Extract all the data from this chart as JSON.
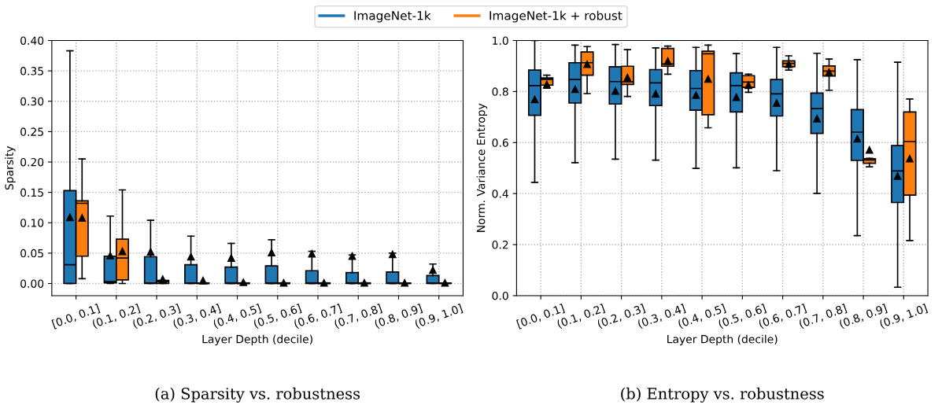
{
  "chart_data": [
    {
      "type": "box",
      "ylabel": "Sparsity",
      "xlabel": "Layer Depth (decile)",
      "categories": [
        "[0.0, 0.1]",
        "(0.1, 0.2]",
        "(0.2, 0.3]",
        "(0.3, 0.4]",
        "(0.4, 0.5]",
        "(0.5, 0.6]",
        "(0.6, 0.7]",
        "(0.7, 0.8]",
        "(0.8, 0.9]",
        "(0.9, 1.0]"
      ],
      "ylim": [
        -0.02,
        0.4
      ],
      "yticks": [
        {
          "value": 0,
          "label": "0.00"
        },
        {
          "value": 0.05,
          "label": "0.05"
        },
        {
          "value": 0.1,
          "label": "0.10"
        },
        {
          "value": 0.15,
          "label": "0.15"
        },
        {
          "value": 0.2,
          "label": "0.20"
        },
        {
          "value": 0.25,
          "label": "0.25"
        },
        {
          "value": 0.3,
          "label": "0.30"
        },
        {
          "value": 0.35,
          "label": "0.35"
        },
        {
          "value": 0.4,
          "label": "0.40"
        }
      ],
      "grid": true,
      "legend": "top",
      "marker": "triangle",
      "annotations": [
        "(a) Sparsity vs. robustness"
      ],
      "series": [
        {
          "name": "ImageNet-1k",
          "color": "#1f77b4",
          "boxes": [
            {
              "low": 0,
              "q1": 0,
              "median": 0.031,
              "q3": 0.153,
              "high": 0.383,
              "mean": 0.109
            },
            {
              "low": 0,
              "q1": 0.001,
              "median": 0.003,
              "q3": 0.045,
              "high": 0.111,
              "mean": 0.046
            },
            {
              "low": 0,
              "q1": 0,
              "median": 0.001,
              "q3": 0.044,
              "high": 0.104,
              "mean": 0.052
            },
            {
              "low": 0,
              "q1": 0,
              "median": 0.001,
              "q3": 0.031,
              "high": 0.078,
              "mean": 0.044
            },
            {
              "low": 0,
              "q1": 0,
              "median": 0.001,
              "q3": 0.027,
              "high": 0.066,
              "mean": 0.042
            },
            {
              "low": 0,
              "q1": 0,
              "median": 0.001,
              "q3": 0.029,
              "high": 0.072,
              "mean": 0.051
            },
            {
              "low": 0,
              "q1": 0,
              "median": 0.001,
              "q3": 0.021,
              "high": 0.053,
              "mean": 0.049
            },
            {
              "low": 0,
              "q1": 0,
              "median": 0.001,
              "q3": 0.018,
              "high": 0.047,
              "mean": 0.045
            },
            {
              "low": 0,
              "q1": 0,
              "median": 0.001,
              "q3": 0.019,
              "high": 0.05,
              "mean": 0.048
            },
            {
              "low": 0,
              "q1": 0,
              "median": 0.001,
              "q3": 0.013,
              "high": 0.032,
              "mean": 0.022
            }
          ]
        },
        {
          "name": "ImageNet-1k + robust",
          "color": "#ff7f0e",
          "boxes": [
            {
              "low": 0.008,
              "q1": 0.045,
              "median": 0.132,
              "q3": 0.136,
              "high": 0.205,
              "mean": 0.108
            },
            {
              "low": 0,
              "q1": 0.006,
              "median": 0.042,
              "q3": 0.073,
              "high": 0.154,
              "mean": 0.053
            },
            {
              "low": 0,
              "q1": 0,
              "median": 0.003,
              "q3": 0.005,
              "high": 0.005,
              "mean": 0.007
            },
            {
              "low": 0,
              "q1": 0,
              "median": 0,
              "q3": 0.001,
              "high": 0.001,
              "mean": 0.005
            },
            {
              "low": 0,
              "q1": 0,
              "median": 0,
              "q3": 0.001,
              "high": 0.001,
              "mean": 0.002
            },
            {
              "low": 0,
              "q1": 0,
              "median": 0,
              "q3": 0.001,
              "high": 0.001,
              "mean": 0.001
            },
            {
              "low": 0,
              "q1": 0,
              "median": 0,
              "q3": 0.001,
              "high": 0.001,
              "mean": 0.001
            },
            {
              "low": 0,
              "q1": 0,
              "median": 0,
              "q3": 0.001,
              "high": 0.001,
              "mean": 0.001
            },
            {
              "low": 0,
              "q1": 0,
              "median": 0,
              "q3": 0.001,
              "high": 0.001,
              "mean": 0.001
            },
            {
              "low": 0,
              "q1": 0,
              "median": 0,
              "q3": 0.001,
              "high": 0.001,
              "mean": 0.001
            }
          ]
        }
      ]
    },
    {
      "type": "box",
      "ylabel": "Norm. Variance Entropy",
      "xlabel": "Layer Depth (decile)",
      "categories": [
        "[0.0, 0.1]",
        "(0.1, 0.2]",
        "(0.2, 0.3]",
        "(0.3, 0.4]",
        "(0.4, 0.5]",
        "(0.5, 0.6]",
        "(0.6, 0.7]",
        "(0.7, 0.8]",
        "(0.8, 0.9]",
        "(0.9, 1.0]"
      ],
      "ylim": [
        0,
        1
      ],
      "yticks": [
        {
          "value": 0,
          "label": "0.0"
        },
        {
          "value": 0.2,
          "label": "0.2"
        },
        {
          "value": 0.4,
          "label": "0.4"
        },
        {
          "value": 0.6,
          "label": "0.6"
        },
        {
          "value": 0.8,
          "label": "0.8"
        },
        {
          "value": 1,
          "label": "1.0"
        }
      ],
      "grid": true,
      "marker": "triangle",
      "annotations": [
        "(b) Entropy vs. robustness"
      ],
      "series": [
        {
          "color": "#1f77b4",
          "boxes": [
            {
              "low": 0.444,
              "q1": 0.707,
              "median": 0.823,
              "q3": 0.884,
              "high": 1.0,
              "mean": 0.769
            },
            {
              "low": 0.521,
              "q1": 0.755,
              "median": 0.847,
              "q3": 0.913,
              "high": 0.982,
              "mean": 0.809
            },
            {
              "low": 0.535,
              "q1": 0.751,
              "median": 0.839,
              "q3": 0.897,
              "high": 0.984,
              "mean": 0.802
            },
            {
              "low": 0.531,
              "q1": 0.745,
              "median": 0.834,
              "q3": 0.886,
              "high": 0.971,
              "mean": 0.791
            },
            {
              "low": 0.499,
              "q1": 0.727,
              "median": 0.812,
              "q3": 0.882,
              "high": 0.973,
              "mean": 0.786
            },
            {
              "low": 0.501,
              "q1": 0.72,
              "median": 0.823,
              "q3": 0.873,
              "high": 0.949,
              "mean": 0.778
            },
            {
              "low": 0.49,
              "q1": 0.704,
              "median": 0.791,
              "q3": 0.847,
              "high": 0.973,
              "mean": 0.755
            },
            {
              "low": 0.401,
              "q1": 0.636,
              "median": 0.733,
              "q3": 0.794,
              "high": 0.95,
              "mean": 0.694
            },
            {
              "low": 0.235,
              "q1": 0.53,
              "median": 0.641,
              "q3": 0.729,
              "high": 0.925,
              "mean": 0.615
            },
            {
              "low": 0.033,
              "q1": 0.365,
              "median": 0.489,
              "q3": 0.588,
              "high": 0.915,
              "mean": 0.469
            }
          ]
        },
        {
          "color": "#ff7f0e",
          "boxes": [
            {
              "low": 0.813,
              "q1": 0.825,
              "median": 0.848,
              "q3": 0.853,
              "high": 0.864,
              "mean": 0.828
            },
            {
              "low": 0.792,
              "q1": 0.864,
              "median": 0.913,
              "q3": 0.955,
              "high": 0.976,
              "mean": 0.907
            },
            {
              "low": 0.781,
              "q1": 0.828,
              "median": 0.838,
              "q3": 0.899,
              "high": 0.964,
              "mean": 0.855
            },
            {
              "low": 0.868,
              "q1": 0.899,
              "median": 0.908,
              "q3": 0.969,
              "high": 0.978,
              "mean": 0.919
            },
            {
              "low": 0.658,
              "q1": 0.709,
              "median": 0.948,
              "q3": 0.958,
              "high": 0.982,
              "mean": 0.849
            },
            {
              "low": 0.797,
              "q1": 0.816,
              "median": 0.837,
              "q3": 0.862,
              "high": 0.868,
              "mean": 0.825
            },
            {
              "low": 0.884,
              "q1": 0.897,
              "median": 0.91,
              "q3": 0.92,
              "high": 0.94,
              "mean": 0.907
            },
            {
              "low": 0.805,
              "q1": 0.861,
              "median": 0.88,
              "q3": 0.9,
              "high": 0.927,
              "mean": 0.876
            },
            {
              "low": 0.505,
              "q1": 0.519,
              "median": 0.532,
              "q3": 0.537,
              "high": 0.538,
              "mean": 0.571
            },
            {
              "low": 0.216,
              "q1": 0.394,
              "median": 0.604,
              "q3": 0.72,
              "high": 0.771,
              "mean": 0.537
            }
          ]
        }
      ]
    }
  ]
}
